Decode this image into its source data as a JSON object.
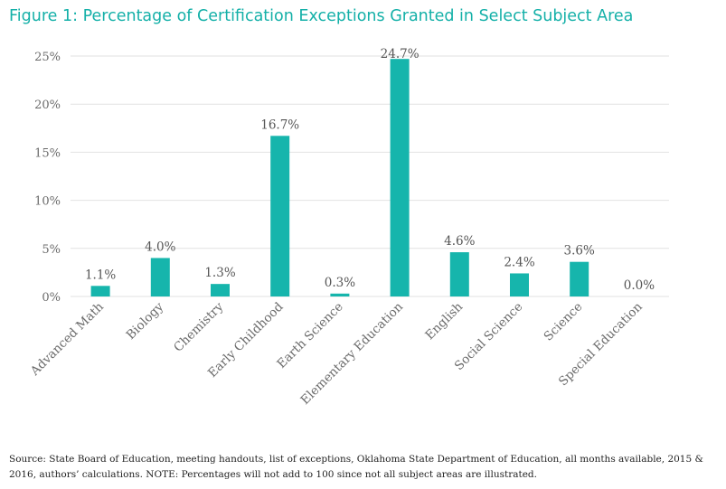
{
  "title": "Figure 1: Percentage of Certification Exceptions Granted in Select Subject Area",
  "source_note": "Source: State Board of Education, meeting handouts, list of exceptions, Oklahoma State Department of Education, all months available, 2015 & 2016, authors’ calculations. NOTE: Percentages will not add to 100 since not all subject areas are illustrated.",
  "colors": {
    "title": "#14b0a8",
    "bar": "#16b5ac"
  },
  "chart_data": {
    "type": "bar",
    "title": "Figure 1: Percentage of Certification Exceptions Granted in Select Subject Area",
    "xlabel": "",
    "ylabel": "",
    "categories": [
      "Advanced Math",
      "Biology",
      "Chemistry",
      "Early Childhood",
      "Earth Science",
      "Elementary Education",
      "English",
      "Social Science",
      "Science",
      "Special Education"
    ],
    "values": [
      1.1,
      4.0,
      1.3,
      16.7,
      0.3,
      24.7,
      4.6,
      2.4,
      3.6,
      0.0
    ],
    "data_labels": [
      "1.1%",
      "4.0%",
      "1.3%",
      "16.7%",
      "0.3%",
      "24.7%",
      "4.6%",
      "2.4%",
      "3.6%",
      "0.0%"
    ],
    "ylim": [
      0,
      25
    ],
    "yticks": [
      0,
      5,
      10,
      15,
      20,
      25
    ],
    "ytick_labels": [
      "0%",
      "5%",
      "10%",
      "15%",
      "20%",
      "25%"
    ],
    "grid": true,
    "legend": "none"
  }
}
